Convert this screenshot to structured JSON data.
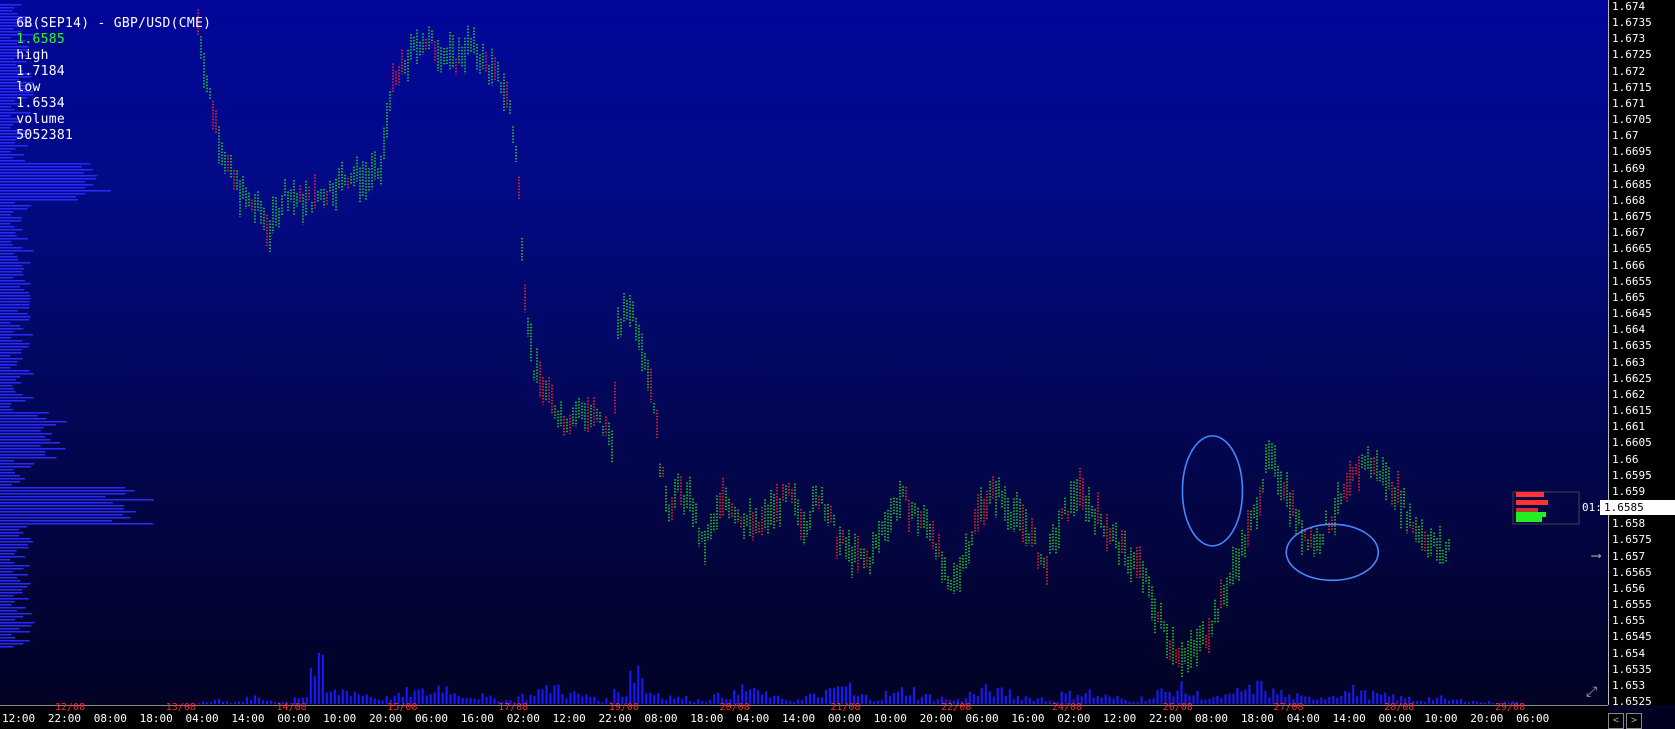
{
  "header": {
    "symbol": "6B(SEP14) - GBP/USD(CME)",
    "last": "1.6585",
    "high_label": "high",
    "high": "1.7184",
    "low_label": "low",
    "low": "1.6534",
    "volume_label": "volume",
    "volume": "5052381"
  },
  "last_price_prefix": "01:",
  "last_price_label": "1.6585",
  "colors": {
    "up": "#22cc22",
    "down": "#ff2222",
    "volume": "#1a1aff",
    "profile": "#2a2aff",
    "annotation": "#4488ff"
  },
  "chart_data": {
    "type": "bar",
    "title": "6B(SEP14) - GBP/USD(CME)",
    "ylim": [
      1.6525,
      1.674
    ],
    "y_ticks": [
      "1.674",
      "1.6735",
      "1.673",
      "1.6725",
      "1.672",
      "1.6715",
      "1.671",
      "1.6705",
      "1.67",
      "1.6695",
      "1.669",
      "1.6685",
      "1.668",
      "1.6675",
      "1.667",
      "1.6665",
      "1.666",
      "1.6655",
      "1.665",
      "1.6645",
      "1.664",
      "1.6635",
      "1.663",
      "1.6625",
      "1.662",
      "1.6615",
      "1.661",
      "1.6605",
      "1.66",
      "1.6595",
      "1.659",
      "1.658",
      "1.6575",
      "1.657",
      "1.6565",
      "1.656",
      "1.6555",
      "1.655",
      "1.6545",
      "1.654",
      "1.6535",
      "1.653",
      "1.6525"
    ],
    "time_ticks": [
      "12:00",
      "22:00",
      "08:00",
      "18:00",
      "04:00",
      "14:00",
      "00:00",
      "10:00",
      "20:00",
      "06:00",
      "16:00",
      "02:00",
      "12:00",
      "22:00",
      "08:00",
      "18:00",
      "04:00",
      "14:00",
      "00:00",
      "10:00",
      "20:00",
      "06:00",
      "16:00",
      "02:00",
      "12:00",
      "22:00",
      "08:00",
      "18:00",
      "04:00",
      "14:00",
      "00:00",
      "10:00",
      "20:00",
      "06:00"
    ],
    "date_ticks": [
      "12/08",
      "13/08",
      "14/08",
      "15/08",
      "17/08",
      "19/08",
      "20/08",
      "21/08",
      "22/08",
      "24/08",
      "26/08",
      "27/08",
      "28/08",
      "29/08"
    ],
    "price_path": [
      [
        0,
        1.6735
      ],
      [
        0.6,
        1.6715
      ],
      [
        1.3,
        1.67
      ],
      [
        2.0,
        1.6688
      ],
      [
        3.0,
        1.668
      ],
      [
        4.0,
        1.6676
      ],
      [
        4.5,
        1.667
      ],
      [
        5.5,
        1.6683
      ],
      [
        6.5,
        1.6679
      ],
      [
        7.5,
        1.6681
      ],
      [
        8.5,
        1.6684
      ],
      [
        9.5,
        1.6688
      ],
      [
        10.5,
        1.6686
      ],
      [
        11.5,
        1.6689
      ],
      [
        12.0,
        1.6713
      ],
      [
        13.0,
        1.6722
      ],
      [
        14.0,
        1.673
      ],
      [
        15.0,
        1.6727
      ],
      [
        16.0,
        1.6723
      ],
      [
        17.0,
        1.6728
      ],
      [
        18.0,
        1.6722
      ],
      [
        19.0,
        1.6716
      ],
      [
        19.5,
        1.671
      ],
      [
        20.0,
        1.669
      ],
      [
        20.5,
        1.665
      ],
      [
        21.0,
        1.6628
      ],
      [
        22.0,
        1.6618
      ],
      [
        23.0,
        1.6612
      ],
      [
        24.0,
        1.6615
      ],
      [
        25.0,
        1.6612
      ],
      [
        26.0,
        1.6606
      ],
      [
        26.3,
        1.664
      ],
      [
        27.0,
        1.6648
      ],
      [
        27.6,
        1.664
      ],
      [
        28.5,
        1.662
      ],
      [
        29.0,
        1.6595
      ],
      [
        29.5,
        1.6585
      ],
      [
        30.0,
        1.659
      ],
      [
        31.0,
        1.6585
      ],
      [
        31.6,
        1.6572
      ],
      [
        32.5,
        1.6582
      ],
      [
        33.0,
        1.6588
      ],
      [
        34.0,
        1.6582
      ],
      [
        35.0,
        1.6578
      ],
      [
        36.0,
        1.6584
      ],
      [
        37.0,
        1.6588
      ],
      [
        38.0,
        1.658
      ],
      [
        39.0,
        1.659
      ],
      [
        40.0,
        1.6575
      ],
      [
        41.0,
        1.657
      ],
      [
        42.0,
        1.6568
      ],
      [
        43.0,
        1.658
      ],
      [
        44.0,
        1.6588
      ],
      [
        45.0,
        1.6582
      ],
      [
        46.0,
        1.6578
      ],
      [
        47.0,
        1.6558
      ],
      [
        48.0,
        1.657
      ],
      [
        49.0,
        1.6585
      ],
      [
        50.0,
        1.659
      ],
      [
        51.0,
        1.6583
      ],
      [
        52.0,
        1.6578
      ],
      [
        53.0,
        1.6566
      ],
      [
        54.0,
        1.658
      ],
      [
        55.0,
        1.659
      ],
      [
        56.0,
        1.6584
      ],
      [
        57.0,
        1.6578
      ],
      [
        58.0,
        1.657
      ],
      [
        59.0,
        1.6566
      ],
      [
        60.0,
        1.6552
      ],
      [
        61.0,
        1.6542
      ],
      [
        62.0,
        1.6538
      ],
      [
        63.0,
        1.6545
      ],
      [
        64.0,
        1.6555
      ],
      [
        65.0,
        1.6568
      ],
      [
        66.0,
        1.658
      ],
      [
        67.0,
        1.66
      ],
      [
        68.0,
        1.6592
      ],
      [
        69.0,
        1.6578
      ],
      [
        70.0,
        1.6574
      ],
      [
        71.0,
        1.6582
      ],
      [
        72.0,
        1.659
      ],
      [
        73.0,
        1.66
      ],
      [
        74.0,
        1.6596
      ],
      [
        75.0,
        1.659
      ],
      [
        76.0,
        1.658
      ],
      [
        77.0,
        1.6575
      ],
      [
        78.0,
        1.657
      ],
      [
        79.0,
        1.6578
      ],
      [
        80.0,
        1.6585
      ],
      [
        81.0,
        1.6586
      ],
      [
        82.0,
        1.6585
      ]
    ],
    "volume_bars": [
      [
        0,
        1
      ],
      [
        1,
        2
      ],
      [
        2,
        1
      ],
      [
        3,
        3
      ],
      [
        4,
        2
      ],
      [
        5,
        1
      ],
      [
        6,
        4
      ],
      [
        7,
        18
      ],
      [
        8,
        6
      ],
      [
        9,
        7
      ],
      [
        10,
        5
      ],
      [
        11,
        3
      ],
      [
        12,
        4
      ],
      [
        13,
        6
      ],
      [
        14,
        6
      ],
      [
        15,
        9
      ],
      [
        16,
        5
      ],
      [
        17,
        4
      ],
      [
        18,
        3
      ],
      [
        19,
        2
      ],
      [
        20,
        4
      ],
      [
        21,
        7
      ],
      [
        22,
        9
      ],
      [
        23,
        5
      ],
      [
        24,
        4
      ],
      [
        25,
        2
      ],
      [
        26,
        6
      ],
      [
        27,
        18
      ],
      [
        28,
        6
      ],
      [
        29,
        4
      ],
      [
        30,
        3
      ],
      [
        31,
        2
      ],
      [
        32,
        4
      ],
      [
        33,
        5
      ],
      [
        34,
        8
      ],
      [
        35,
        5
      ],
      [
        36,
        3
      ],
      [
        37,
        2
      ],
      [
        38,
        4
      ],
      [
        39,
        6
      ],
      [
        40,
        9
      ],
      [
        41,
        4
      ],
      [
        42,
        3
      ],
      [
        43,
        5
      ],
      [
        44,
        7
      ],
      [
        45,
        4
      ],
      [
        46,
        3
      ],
      [
        47,
        2
      ],
      [
        48,
        5
      ],
      [
        49,
        7
      ],
      [
        50,
        6
      ],
      [
        51,
        4
      ],
      [
        52,
        3
      ],
      [
        53,
        2
      ],
      [
        54,
        5
      ],
      [
        55,
        6
      ],
      [
        56,
        4
      ],
      [
        57,
        3
      ],
      [
        58,
        2
      ],
      [
        59,
        3
      ],
      [
        60,
        6
      ],
      [
        61,
        8
      ],
      [
        62,
        5
      ],
      [
        63,
        3
      ],
      [
        64,
        4
      ],
      [
        65,
        7
      ],
      [
        66,
        9
      ],
      [
        67,
        6
      ],
      [
        68,
        4
      ],
      [
        69,
        3
      ],
      [
        70,
        4
      ],
      [
        71,
        6
      ],
      [
        72,
        7
      ],
      [
        73,
        5
      ],
      [
        74,
        4
      ],
      [
        75,
        3
      ],
      [
        76,
        2
      ],
      [
        77,
        3
      ],
      [
        78,
        2
      ],
      [
        79,
        2
      ],
      [
        80,
        1
      ],
      [
        81,
        1
      ],
      [
        82,
        1
      ]
    ],
    "annotations": [
      {
        "type": "ellipse",
        "x": 63.5,
        "y": 1.659
      },
      {
        "type": "ellipse",
        "x": 71.0,
        "y": 1.6571
      }
    ]
  },
  "nav": {
    "prev": "<",
    "next": ">"
  },
  "icons": [
    "expand-icon",
    "arrow-right-icon"
  ]
}
